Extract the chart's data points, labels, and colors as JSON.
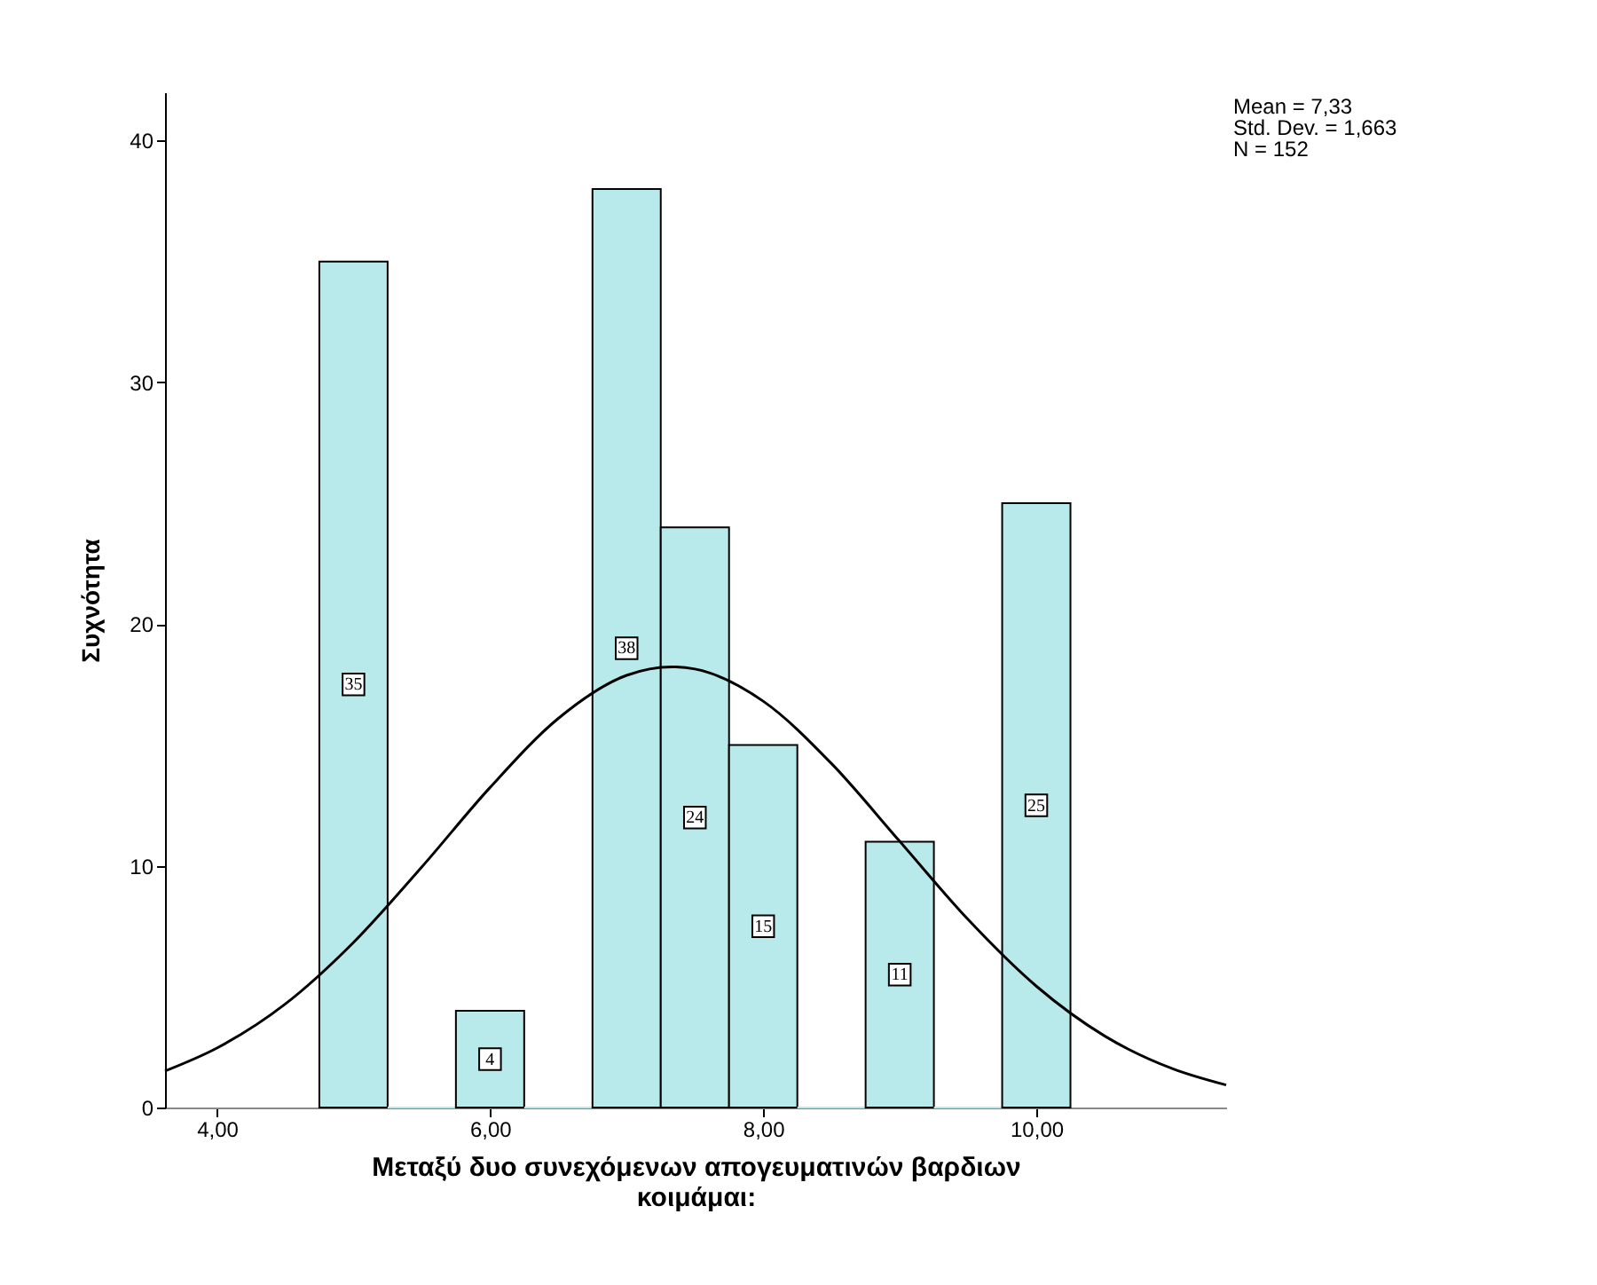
{
  "chart_data": {
    "type": "histogram",
    "xlabel": "Μεταξύ δυο συνεχόμενων απογευματινών βαρδιων κοιμάμαι:",
    "ylabel": "Συχνότητα",
    "annotations": [
      "Mean = 7,33",
      "Std. Dev. = 1,663",
      "N = 152"
    ],
    "xlim": [
      3.62,
      11.39
    ],
    "ylim": [
      0,
      42
    ],
    "xticks": [
      {
        "value": 4,
        "label": "4,00"
      },
      {
        "value": 6,
        "label": "6,00"
      },
      {
        "value": 8,
        "label": "8,00"
      },
      {
        "value": 10,
        "label": "10,00"
      }
    ],
    "yticks": [
      0,
      10,
      20,
      30,
      40
    ],
    "series": [
      {
        "color": "#b9eaeb",
        "bins": [
          4.75,
          5.25,
          5.75,
          6.25,
          6.75,
          7.25,
          7.75,
          8.25,
          8.75,
          9.25,
          9.75,
          10.25
        ],
        "values": [
          35,
          0,
          4,
          0,
          38,
          24,
          15,
          0,
          11,
          0,
          25
        ],
        "value_labels": [
          "35",
          null,
          "4",
          null,
          "38",
          "24",
          "15",
          null,
          "11",
          null,
          "25"
        ]
      },
      {
        "type": "line",
        "color": "#000000",
        "x": [
          3.62,
          4.0,
          4.5,
          5.0,
          5.5,
          6.0,
          6.5,
          7.0,
          7.33,
          7.5,
          8.0,
          8.5,
          9.0,
          9.5,
          10.0,
          10.5,
          11.0,
          11.39
        ],
        "values": [
          1.51,
          2.46,
          4.28,
          6.83,
          9.95,
          13.24,
          16.1,
          17.88,
          18.23,
          18.14,
          16.81,
          14.23,
          11.01,
          7.78,
          5.02,
          2.96,
          1.6,
          0.93
        ]
      }
    ]
  }
}
